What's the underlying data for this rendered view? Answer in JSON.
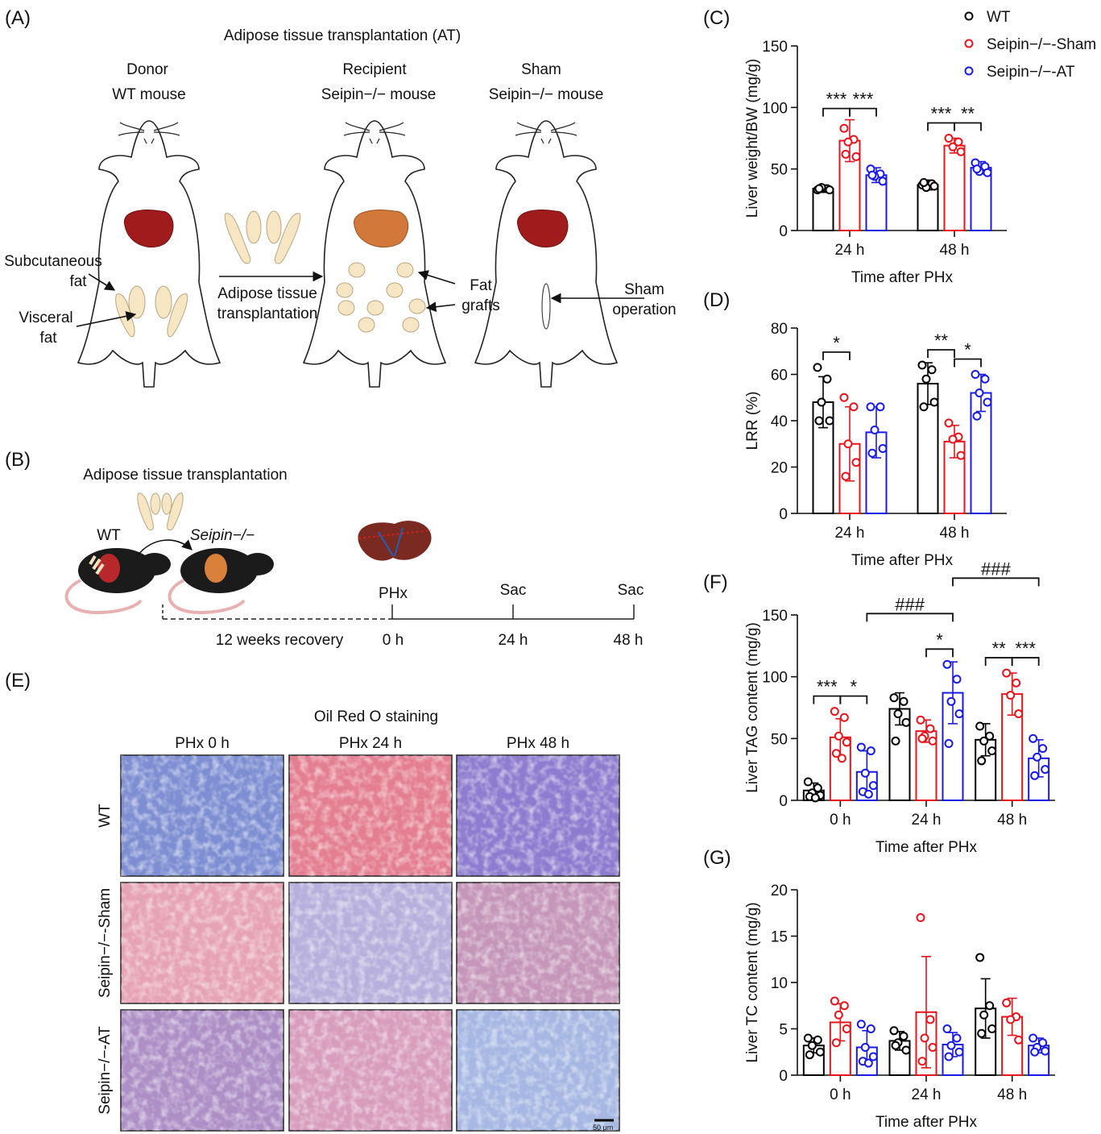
{
  "figure": {
    "labels": [
      "(A)",
      "(B)",
      "(C)",
      "(D)",
      "(E)",
      "(F)",
      "(G)"
    ],
    "a": {
      "title": "Adipose tissue transplantation (AT)",
      "donor": [
        "Donor",
        "WT mouse"
      ],
      "recipient": [
        "Recipient",
        "Seipin−/− mouse"
      ],
      "sham": [
        "Sham",
        "Seipin−/− mouse"
      ],
      "subcutaneous": [
        "Subcutaneous",
        "fat"
      ],
      "visceral": [
        "Visceral",
        "fat"
      ],
      "transfer": [
        "Adipose tissue",
        "transplantation"
      ],
      "grafts": [
        "Fat",
        "grafts"
      ],
      "operation": [
        "Sham",
        "operation"
      ]
    },
    "b": {
      "title": "Adipose tissue transplantation",
      "donor": "WT",
      "recipient": "Seipin−/−",
      "events": [
        "PHx",
        "Sac",
        "Sac"
      ],
      "recovery": "12 weeks recovery",
      "times": [
        "0 h",
        "24 h",
        "48 h"
      ]
    },
    "e": {
      "title": "Oil Red O staining",
      "columns": [
        "PHx 0 h",
        "PHx 24 h",
        "PHx 48 h"
      ],
      "rows": [
        "WT",
        "Seipin−/−-Sham",
        "Seipin−/−-AT"
      ],
      "scale": "50 μm"
    }
  },
  "chart_data": [
    {
      "type": "bar",
      "ylabel": "Liver weight/BW (mg/g)",
      "xlabel": "Time after PHx",
      "categories": [
        "24 h",
        "48 h"
      ],
      "ylim": [
        0,
        150
      ],
      "yticks": [
        0,
        50,
        100,
        150
      ],
      "legend": "upper right",
      "series": [
        {
          "name": "WT",
          "color": "#000000",
          "values": [
            34,
            37
          ],
          "errors": [
            3,
            4
          ],
          "points": [
            [
              33,
              34,
              35,
              33,
              34
            ],
            [
              37,
              38,
              35,
              36,
              39
            ]
          ]
        },
        {
          "name": "Seipin−/−-Sham",
          "color": "#e8141b",
          "values": [
            73,
            69
          ],
          "errors": [
            17,
            6
          ],
          "points": [
            [
              83,
              74,
              72,
              60,
              62
            ],
            [
              75,
              72,
              68,
              64
            ]
          ]
        },
        {
          "name": "Seipin−/−-AT",
          "color": "#1a1ae6",
          "values": [
            45,
            51
          ],
          "errors": [
            6,
            5
          ],
          "points": [
            [
              50,
              46,
              44,
              40,
              45
            ],
            [
              55,
              52,
              48,
              47,
              50
            ]
          ]
        }
      ],
      "annotations": [
        {
          "text": "***",
          "from": [
            0,
            0
          ],
          "to": [
            0,
            1
          ]
        },
        {
          "text": "***",
          "from": [
            0,
            1
          ],
          "to": [
            0,
            2
          ]
        },
        {
          "text": "***",
          "from": [
            1,
            0
          ],
          "to": [
            1,
            1
          ]
        },
        {
          "text": "**",
          "from": [
            1,
            1
          ],
          "to": [
            1,
            2
          ]
        }
      ]
    },
    {
      "type": "bar",
      "ylabel": "LRR (%)",
      "xlabel": "Time after PHx",
      "categories": [
        "24 h",
        "48 h"
      ],
      "ylim": [
        0,
        80
      ],
      "yticks": [
        0,
        20,
        40,
        60,
        80
      ],
      "series": [
        {
          "color": "#000000",
          "values": [
            48,
            56
          ],
          "errors": [
            11,
            9
          ],
          "points": [
            [
              63,
              58,
              48,
              40,
              40
            ],
            [
              64,
              62,
              58,
              48,
              46
            ]
          ]
        },
        {
          "color": "#e8141b",
          "values": [
            30,
            31
          ],
          "errors": [
            16,
            7
          ],
          "points": [
            [
              50,
              46,
              30,
              22,
              16
            ],
            [
              39,
              33,
              32,
              25
            ]
          ]
        },
        {
          "color": "#1a1ae6",
          "values": [
            35,
            52
          ],
          "errors": [
            11,
            8
          ],
          "points": [
            [
              46,
              46,
              36,
              28,
              26
            ],
            [
              60,
              58,
              52,
              48,
              42
            ]
          ]
        }
      ],
      "annotations": [
        {
          "text": "*",
          "from": [
            0,
            0
          ],
          "to": [
            0,
            1
          ]
        },
        {
          "text": "**",
          "from": [
            1,
            0
          ],
          "to": [
            1,
            1
          ]
        },
        {
          "text": "*",
          "from": [
            1,
            1
          ],
          "to": [
            1,
            2
          ]
        }
      ]
    },
    {
      "type": "bar",
      "ylabel": "Liver TAG content (mg/g)",
      "xlabel": "Time after PHx",
      "categories": [
        "0 h",
        "24 h",
        "48 h"
      ],
      "ylim": [
        0,
        150
      ],
      "yticks": [
        0,
        50,
        100,
        150
      ],
      "series": [
        {
          "color": "#000000",
          "values": [
            8,
            74,
            49
          ],
          "errors": [
            6,
            13,
            13
          ],
          "points": [
            [
              15,
              10,
              6,
              4,
              3,
              2
            ],
            [
              83,
              80,
              70,
              63,
              48
            ],
            [
              60,
              52,
              48,
              40,
              32
            ]
          ]
        },
        {
          "color": "#e8141b",
          "values": [
            51,
            56,
            86
          ],
          "errors": [
            15,
            9,
            17
          ],
          "points": [
            [
              72,
              67,
              52,
              47,
              38,
              34
            ],
            [
              65,
              58,
              52,
              48,
              50
            ],
            [
              103,
              95,
              85,
              70
            ]
          ]
        },
        {
          "color": "#1a1ae6",
          "values": [
            23,
            87,
            34
          ],
          "errors": [
            17,
            25,
            15
          ],
          "points": [
            [
              43,
              40,
              22,
              12,
              7,
              5
            ],
            [
              110,
              98,
              80,
              70,
              46
            ],
            [
              50,
              42,
              35,
              25,
              20
            ]
          ]
        }
      ],
      "annotations": [
        {
          "text": "***",
          "from": [
            0,
            0
          ],
          "to": [
            0,
            1
          ]
        },
        {
          "text": "*",
          "from": [
            0,
            1
          ],
          "to": [
            0,
            2
          ]
        },
        {
          "text": "*",
          "from": [
            1,
            1
          ],
          "to": [
            1,
            2
          ]
        },
        {
          "text": "**",
          "from": [
            2,
            0
          ],
          "to": [
            2,
            1
          ]
        },
        {
          "text": "***",
          "from": [
            2,
            1
          ],
          "to": [
            2,
            2
          ]
        },
        {
          "text": "###",
          "from": [
            0,
            2
          ],
          "to": [
            1,
            2
          ]
        },
        {
          "text": "###",
          "from": [
            1,
            2
          ],
          "to": [
            2,
            2
          ]
        }
      ]
    },
    {
      "type": "bar",
      "ylabel": "Liver TC content (mg/g)",
      "xlabel": "Time after PHx",
      "categories": [
        "0 h",
        "24 h",
        "48 h"
      ],
      "ylim": [
        0,
        20
      ],
      "yticks": [
        0,
        5,
        10,
        15,
        20
      ],
      "series": [
        {
          "color": "#000000",
          "values": [
            3.2,
            3.7,
            7.2
          ],
          "errors": [
            0.8,
            1,
            3.2
          ],
          "points": [
            [
              4,
              3.8,
              3.2,
              2.5,
              2.2
            ],
            [
              4.8,
              4.2,
              3.5,
              2.7,
              3.2
            ],
            [
              12.7,
              7.5,
              6.5,
              5,
              4.5
            ]
          ]
        },
        {
          "color": "#e8141b",
          "values": [
            5.7,
            6.8,
            6.3
          ],
          "errors": [
            2,
            6,
            2
          ],
          "points": [
            [
              8,
              7.5,
              6.5,
              5,
              3.5
            ],
            [
              17,
              6,
              4,
              3,
              1.5
            ],
            [
              7.8,
              6.3,
              6,
              3.8
            ]
          ]
        },
        {
          "color": "#1a1ae6",
          "values": [
            3,
            3.3,
            3.2
          ],
          "errors": [
            1.8,
            1.3,
            0.8
          ],
          "points": [
            [
              5.5,
              5,
              3,
              2,
              1.5,
              1.3
            ],
            [
              5,
              4,
              3.2,
              2.5,
              2
            ],
            [
              4,
              3.5,
              3,
              2.6,
              2.5
            ]
          ]
        }
      ],
      "annotations": []
    }
  ]
}
